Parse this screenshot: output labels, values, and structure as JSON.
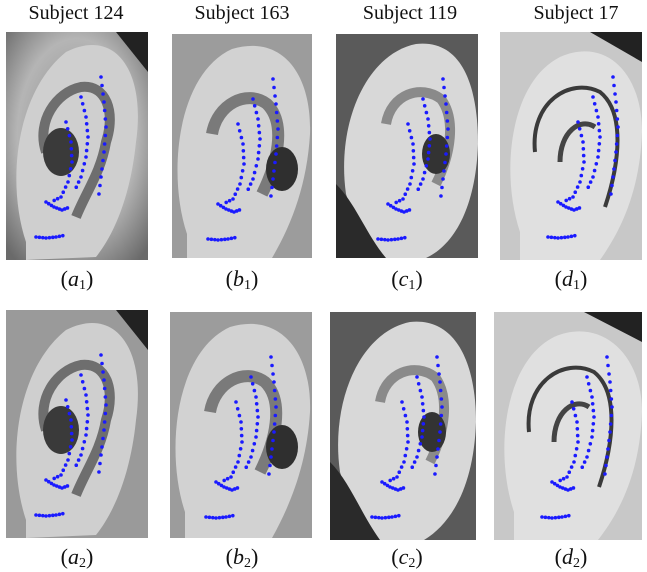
{
  "headers": [
    "Subject 124",
    "Subject 163",
    "Subject 119",
    "Subject 17"
  ],
  "captions": [
    {
      "letter": "a",
      "index": "1"
    },
    {
      "letter": "b",
      "index": "1"
    },
    {
      "letter": "c",
      "index": "1"
    },
    {
      "letter": "d",
      "index": "1"
    },
    {
      "letter": "a",
      "index": "2"
    },
    {
      "letter": "b",
      "index": "2"
    },
    {
      "letter": "c",
      "index": "2"
    },
    {
      "letter": "d",
      "index": "2"
    }
  ],
  "colors": {
    "landmark": "#1a1aff",
    "background": "#ffffff"
  },
  "panels": [
    {
      "subject": "Subject 124",
      "row": 1,
      "icon": "grayscale-ear-photo"
    },
    {
      "subject": "Subject 163",
      "row": 1,
      "icon": "grayscale-ear-photo"
    },
    {
      "subject": "Subject 119",
      "row": 1,
      "icon": "grayscale-ear-photo"
    },
    {
      "subject": "Subject 17",
      "row": 1,
      "icon": "grayscale-ear-photo"
    },
    {
      "subject": "Subject 124",
      "row": 2,
      "icon": "grayscale-ear-photo"
    },
    {
      "subject": "Subject 163",
      "row": 2,
      "icon": "grayscale-ear-photo"
    },
    {
      "subject": "Subject 119",
      "row": 2,
      "icon": "grayscale-ear-photo"
    },
    {
      "subject": "Subject 17",
      "row": 2,
      "icon": "grayscale-ear-photo"
    }
  ]
}
